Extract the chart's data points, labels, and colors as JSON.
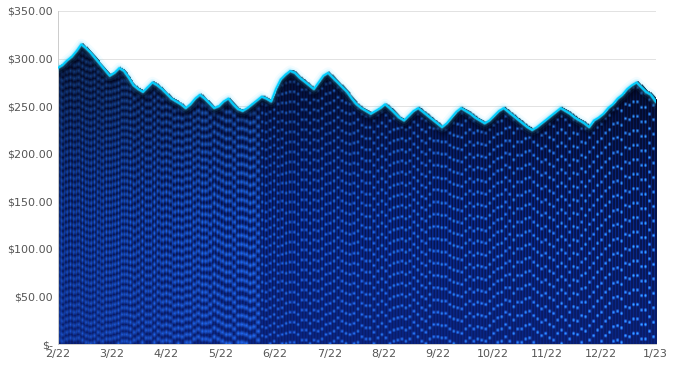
{
  "x_labels": [
    "2/22",
    "3/22",
    "4/22",
    "5/22",
    "6/22",
    "7/22",
    "8/22",
    "9/22",
    "10/22",
    "11/22",
    "12/22",
    "1/23"
  ],
  "y_ticks": [
    0,
    50,
    100,
    150,
    200,
    250,
    300,
    350
  ],
  "y_tick_labels": [
    "$-",
    "$50.00",
    "$100.00",
    "$150.00",
    "$200.00",
    "$250.00",
    "$300.00",
    "$350.00"
  ],
  "ylim": [
    0,
    350
  ],
  "line_color": "#00cfff",
  "line_width": 1.2,
  "bg_color": "#ffffff",
  "plot_bg": "#ffffff",
  "values": [
    290,
    293,
    298,
    302,
    308,
    315,
    311,
    306,
    300,
    294,
    288,
    282,
    285,
    290,
    287,
    280,
    272,
    268,
    265,
    270,
    275,
    272,
    268,
    263,
    258,
    255,
    252,
    248,
    252,
    258,
    262,
    258,
    253,
    248,
    250,
    255,
    258,
    252,
    247,
    245,
    248,
    252,
    256,
    260,
    258,
    255,
    268,
    278,
    283,
    287,
    285,
    280,
    276,
    272,
    268,
    275,
    282,
    285,
    280,
    275,
    270,
    265,
    258,
    252,
    248,
    245,
    242,
    245,
    248,
    252,
    248,
    243,
    238,
    235,
    240,
    245,
    248,
    244,
    240,
    236,
    232,
    228,
    232,
    238,
    244,
    248,
    245,
    242,
    238,
    235,
    232,
    235,
    240,
    245,
    248,
    244,
    240,
    236,
    232,
    228,
    225,
    228,
    232,
    236,
    240,
    244,
    248,
    245,
    242,
    238,
    235,
    232,
    228,
    235,
    238,
    242,
    248,
    252,
    258,
    262,
    268,
    272,
    275,
    270,
    265,
    262,
    255
  ]
}
